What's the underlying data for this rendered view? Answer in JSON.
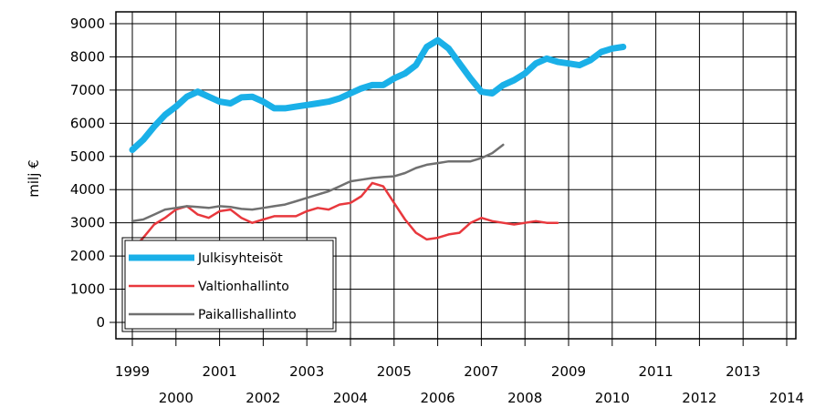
{
  "chart_data": {
    "type": "line",
    "title": "",
    "xlabel": "",
    "ylabel": "milj €",
    "xlim": [
      1999,
      2014
    ],
    "ylim": [
      0,
      9000
    ],
    "x_ticks": [
      1999,
      2000,
      2001,
      2002,
      2003,
      2004,
      2005,
      2006,
      2007,
      2008,
      2009,
      2010,
      2011,
      2012,
      2013,
      2014
    ],
    "x_tick_labels": [
      "1999",
      "2000",
      "2001",
      "2002",
      "2003",
      "2004",
      "2005",
      "2006",
      "2007",
      "2008",
      "2009",
      "2010",
      "2011",
      "2012",
      "2013",
      "2014"
    ],
    "y_ticks": [
      0,
      1000,
      2000,
      3000,
      4000,
      5000,
      6000,
      7000,
      8000,
      9000
    ],
    "y_tick_labels": [
      "0",
      "1000",
      "2000",
      "3000",
      "4000",
      "5000",
      "6000",
      "7000",
      "8000",
      "9000"
    ],
    "grid": true,
    "legend_position": "bottom-left",
    "series": [
      {
        "name": "Julkisyhteisöt",
        "color": "#1ab0e8",
        "points": [
          [
            1999.0,
            5200
          ],
          [
            1999.25,
            5500
          ],
          [
            1999.5,
            5900
          ],
          [
            1999.75,
            6250
          ],
          [
            2000.0,
            6500
          ],
          [
            2000.25,
            6800
          ],
          [
            2000.5,
            6950
          ],
          [
            2000.75,
            6800
          ],
          [
            2001.0,
            6650
          ],
          [
            2001.25,
            6600
          ],
          [
            2001.5,
            6780
          ],
          [
            2001.75,
            6800
          ],
          [
            2002.0,
            6650
          ],
          [
            2002.25,
            6450
          ],
          [
            2002.5,
            6450
          ],
          [
            2002.75,
            6500
          ],
          [
            2003.0,
            6550
          ],
          [
            2003.25,
            6600
          ],
          [
            2003.5,
            6650
          ],
          [
            2003.75,
            6750
          ],
          [
            2004.0,
            6900
          ],
          [
            2004.25,
            7050
          ],
          [
            2004.5,
            7150
          ],
          [
            2004.75,
            7150
          ],
          [
            2005.0,
            7350
          ],
          [
            2005.25,
            7500
          ],
          [
            2005.5,
            7750
          ],
          [
            2005.75,
            8300
          ],
          [
            2006.0,
            8500
          ],
          [
            2006.25,
            8250
          ],
          [
            2006.5,
            7800
          ],
          [
            2006.75,
            7350
          ],
          [
            2007.0,
            6950
          ],
          [
            2007.25,
            6900
          ],
          [
            2007.5,
            7150
          ],
          [
            2007.75,
            7300
          ],
          [
            2008.0,
            7500
          ],
          [
            2008.25,
            7800
          ],
          [
            2008.5,
            7950
          ],
          [
            2008.75,
            7850
          ],
          [
            2009.0,
            7800
          ],
          [
            2009.25,
            7750
          ],
          [
            2009.5,
            7900
          ],
          [
            2009.75,
            8150
          ],
          [
            2010.0,
            8250
          ],
          [
            2010.25,
            8300
          ]
        ]
      },
      {
        "name": "Valtionhallinto",
        "color": "#e8383d",
        "points": [
          [
            1999.0,
            2200
          ],
          [
            1999.25,
            2550
          ],
          [
            1999.5,
            2950
          ],
          [
            1999.75,
            3150
          ],
          [
            2000.0,
            3400
          ],
          [
            2000.25,
            3500
          ],
          [
            2000.5,
            3250
          ],
          [
            2000.75,
            3150
          ],
          [
            2001.0,
            3350
          ],
          [
            2001.25,
            3400
          ],
          [
            2001.5,
            3150
          ],
          [
            2001.75,
            3000
          ],
          [
            2002.0,
            3100
          ],
          [
            2002.25,
            3200
          ],
          [
            2002.5,
            3200
          ],
          [
            2002.75,
            3200
          ],
          [
            2003.0,
            3350
          ],
          [
            2003.25,
            3450
          ],
          [
            2003.5,
            3400
          ],
          [
            2003.75,
            3550
          ],
          [
            2004.0,
            3600
          ],
          [
            2004.25,
            3800
          ],
          [
            2004.5,
            4200
          ],
          [
            2004.75,
            4100
          ],
          [
            2005.0,
            3600
          ],
          [
            2005.25,
            3100
          ],
          [
            2005.5,
            2700
          ],
          [
            2005.75,
            2500
          ],
          [
            2006.0,
            2550
          ],
          [
            2006.25,
            2650
          ],
          [
            2006.5,
            2700
          ],
          [
            2006.75,
            3000
          ],
          [
            2007.0,
            3150
          ],
          [
            2007.25,
            3050
          ],
          [
            2007.5,
            3000
          ],
          [
            2007.75,
            2950
          ],
          [
            2008.0,
            3000
          ],
          [
            2008.25,
            3050
          ],
          [
            2008.5,
            3000
          ],
          [
            2008.75,
            3000
          ]
        ]
      },
      {
        "name": "Paikallishallinto",
        "color": "#707070",
        "points": [
          [
            1999.0,
            3050
          ],
          [
            1999.25,
            3100
          ],
          [
            1999.5,
            3250
          ],
          [
            1999.75,
            3400
          ],
          [
            2000.0,
            3450
          ],
          [
            2000.25,
            3500
          ],
          [
            2000.5,
            3480
          ],
          [
            2000.75,
            3450
          ],
          [
            2001.0,
            3500
          ],
          [
            2001.25,
            3480
          ],
          [
            2001.5,
            3420
          ],
          [
            2001.75,
            3400
          ],
          [
            2002.0,
            3450
          ],
          [
            2002.25,
            3500
          ],
          [
            2002.5,
            3550
          ],
          [
            2002.75,
            3650
          ],
          [
            2003.0,
            3750
          ],
          [
            2003.25,
            3850
          ],
          [
            2003.5,
            3950
          ],
          [
            2003.75,
            4100
          ],
          [
            2004.0,
            4250
          ],
          [
            2004.25,
            4300
          ],
          [
            2004.5,
            4350
          ],
          [
            2004.75,
            4380
          ],
          [
            2005.0,
            4400
          ],
          [
            2005.25,
            4500
          ],
          [
            2005.5,
            4650
          ],
          [
            2005.75,
            4750
          ],
          [
            2006.0,
            4800
          ],
          [
            2006.25,
            4850
          ],
          [
            2006.5,
            4850
          ],
          [
            2006.75,
            4850
          ],
          [
            2007.0,
            4950
          ],
          [
            2007.25,
            5100
          ],
          [
            2007.5,
            5350
          ]
        ]
      }
    ]
  }
}
